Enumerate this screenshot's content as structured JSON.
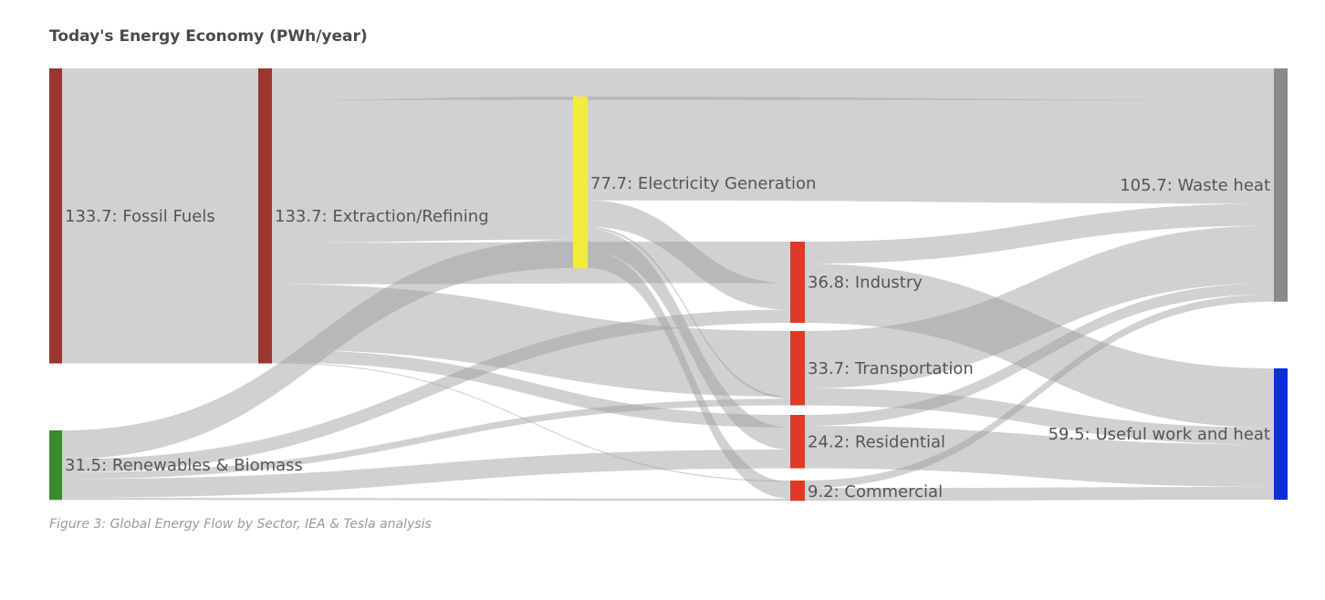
{
  "chart_data": {
    "type": "sankey",
    "title": "Today's Energy Economy (PWh/year)",
    "caption": "Figure 3: Global Energy Flow by Sector, IEA & Tesla analysis",
    "units": "PWh/year",
    "nodes": [
      {
        "id": "fossil",
        "name": "Fossil Fuels",
        "value": 133.7,
        "color": "#9b3630"
      },
      {
        "id": "renew",
        "name": "Renewables & Biomass",
        "value": 31.5,
        "color": "#3a8a2e"
      },
      {
        "id": "extract",
        "name": "Extraction/Refining",
        "value": 133.7,
        "color": "#9b3630"
      },
      {
        "id": "elec",
        "name": "Electricity Generation",
        "value": 77.7,
        "color": "#f3ec3a"
      },
      {
        "id": "industry",
        "name": "Industry",
        "value": 36.8,
        "color": "#e03a26"
      },
      {
        "id": "transport",
        "name": "Transportation",
        "value": 33.7,
        "color": "#e03a26"
      },
      {
        "id": "residential",
        "name": "Residential",
        "value": 24.2,
        "color": "#e03a26"
      },
      {
        "id": "commercial",
        "name": "Commercial",
        "value": 9.2,
        "color": "#e03a26"
      },
      {
        "id": "waste",
        "name": "Waste heat",
        "value": 105.7,
        "color": "#8a8a8a"
      },
      {
        "id": "useful",
        "name": "Useful work and heat",
        "value": 59.5,
        "color": "#0a2ee0"
      }
    ],
    "links": [
      {
        "source": "fossil",
        "target": "extract",
        "value": 133.7
      },
      {
        "source": "renew",
        "target": "elec",
        "value": 13
      },
      {
        "source": "renew",
        "target": "industry",
        "value": 6
      },
      {
        "source": "renew",
        "target": "transport",
        "value": 3
      },
      {
        "source": "renew",
        "target": "residential",
        "value": 8.5
      },
      {
        "source": "renew",
        "target": "commercial",
        "value": 1
      },
      {
        "source": "extract",
        "target": "waste",
        "value": 14.3
      },
      {
        "source": "extract",
        "target": "elec",
        "value": 64.7
      },
      {
        "source": "extract",
        "target": "industry",
        "value": 18.8
      },
      {
        "source": "extract",
        "target": "transport",
        "value": 29.7
      },
      {
        "source": "extract",
        "target": "residential",
        "value": 5.7
      },
      {
        "source": "extract",
        "target": "commercial",
        "value": 0.5
      },
      {
        "source": "elec",
        "target": "waste",
        "value": 47
      },
      {
        "source": "elec",
        "target": "industry",
        "value": 12
      },
      {
        "source": "elec",
        "target": "transport",
        "value": 1
      },
      {
        "source": "elec",
        "target": "residential",
        "value": 10
      },
      {
        "source": "elec",
        "target": "commercial",
        "value": 7.7
      },
      {
        "source": "industry",
        "target": "waste",
        "value": 10
      },
      {
        "source": "industry",
        "target": "useful",
        "value": 26.8
      },
      {
        "source": "transport",
        "target": "waste",
        "value": 26
      },
      {
        "source": "transport",
        "target": "useful",
        "value": 7.7
      },
      {
        "source": "residential",
        "target": "waste",
        "value": 5
      },
      {
        "source": "residential",
        "target": "useful",
        "value": 19.2
      },
      {
        "source": "commercial",
        "target": "waste",
        "value": 3.4
      },
      {
        "source": "commercial",
        "target": "useful",
        "value": 5.8
      }
    ],
    "link_color": "#bdbdbd"
  }
}
